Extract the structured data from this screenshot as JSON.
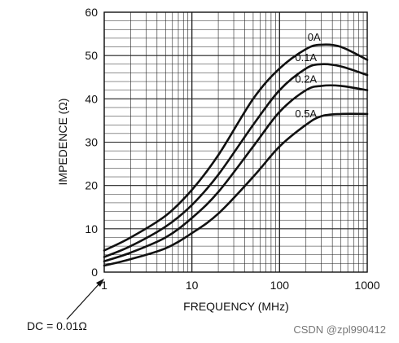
{
  "chart_data": {
    "type": "line",
    "xscale": "log",
    "xlim": [
      1,
      1000
    ],
    "ylim": [
      0,
      60
    ],
    "xlabel": "FREQUENCY (MHz)",
    "ylabel": "IMPEDENCE (Ω)",
    "x_ticks": [
      "1",
      "10",
      "100",
      "1000"
    ],
    "y_ticks": [
      "0",
      "10",
      "20",
      "30",
      "40",
      "50",
      "60"
    ],
    "grid": true,
    "series": [
      {
        "name": "0A",
        "x": [
          1,
          2,
          5,
          10,
          20,
          50,
          100,
          200,
          300,
          500,
          1000
        ],
        "y": [
          5,
          8,
          13,
          19,
          27,
          40,
          47,
          51.5,
          52.5,
          52,
          49
        ]
      },
      {
        "name": "0.1A",
        "x": [
          1,
          2,
          5,
          10,
          20,
          50,
          100,
          200,
          300,
          500,
          1000
        ],
        "y": [
          3.5,
          6,
          10.5,
          15.5,
          22.5,
          34,
          42,
          47,
          48,
          47.5,
          45.5
        ]
      },
      {
        "name": "0.2A",
        "x": [
          1,
          2,
          5,
          10,
          20,
          50,
          100,
          200,
          300,
          500,
          1000
        ],
        "y": [
          2.5,
          4.5,
          8,
          12.5,
          18.5,
          29,
          37,
          42,
          43,
          43,
          42
        ]
      },
      {
        "name": "0.5A",
        "x": [
          1,
          2,
          5,
          10,
          20,
          50,
          100,
          200,
          300,
          500,
          1000
        ],
        "y": [
          1.5,
          3,
          5.5,
          9,
          13.5,
          22,
          29,
          34,
          36,
          36.5,
          36.5
        ]
      }
    ],
    "annotation": "DC = 0.01Ω"
  },
  "watermark": "CSDN @zpl990412"
}
